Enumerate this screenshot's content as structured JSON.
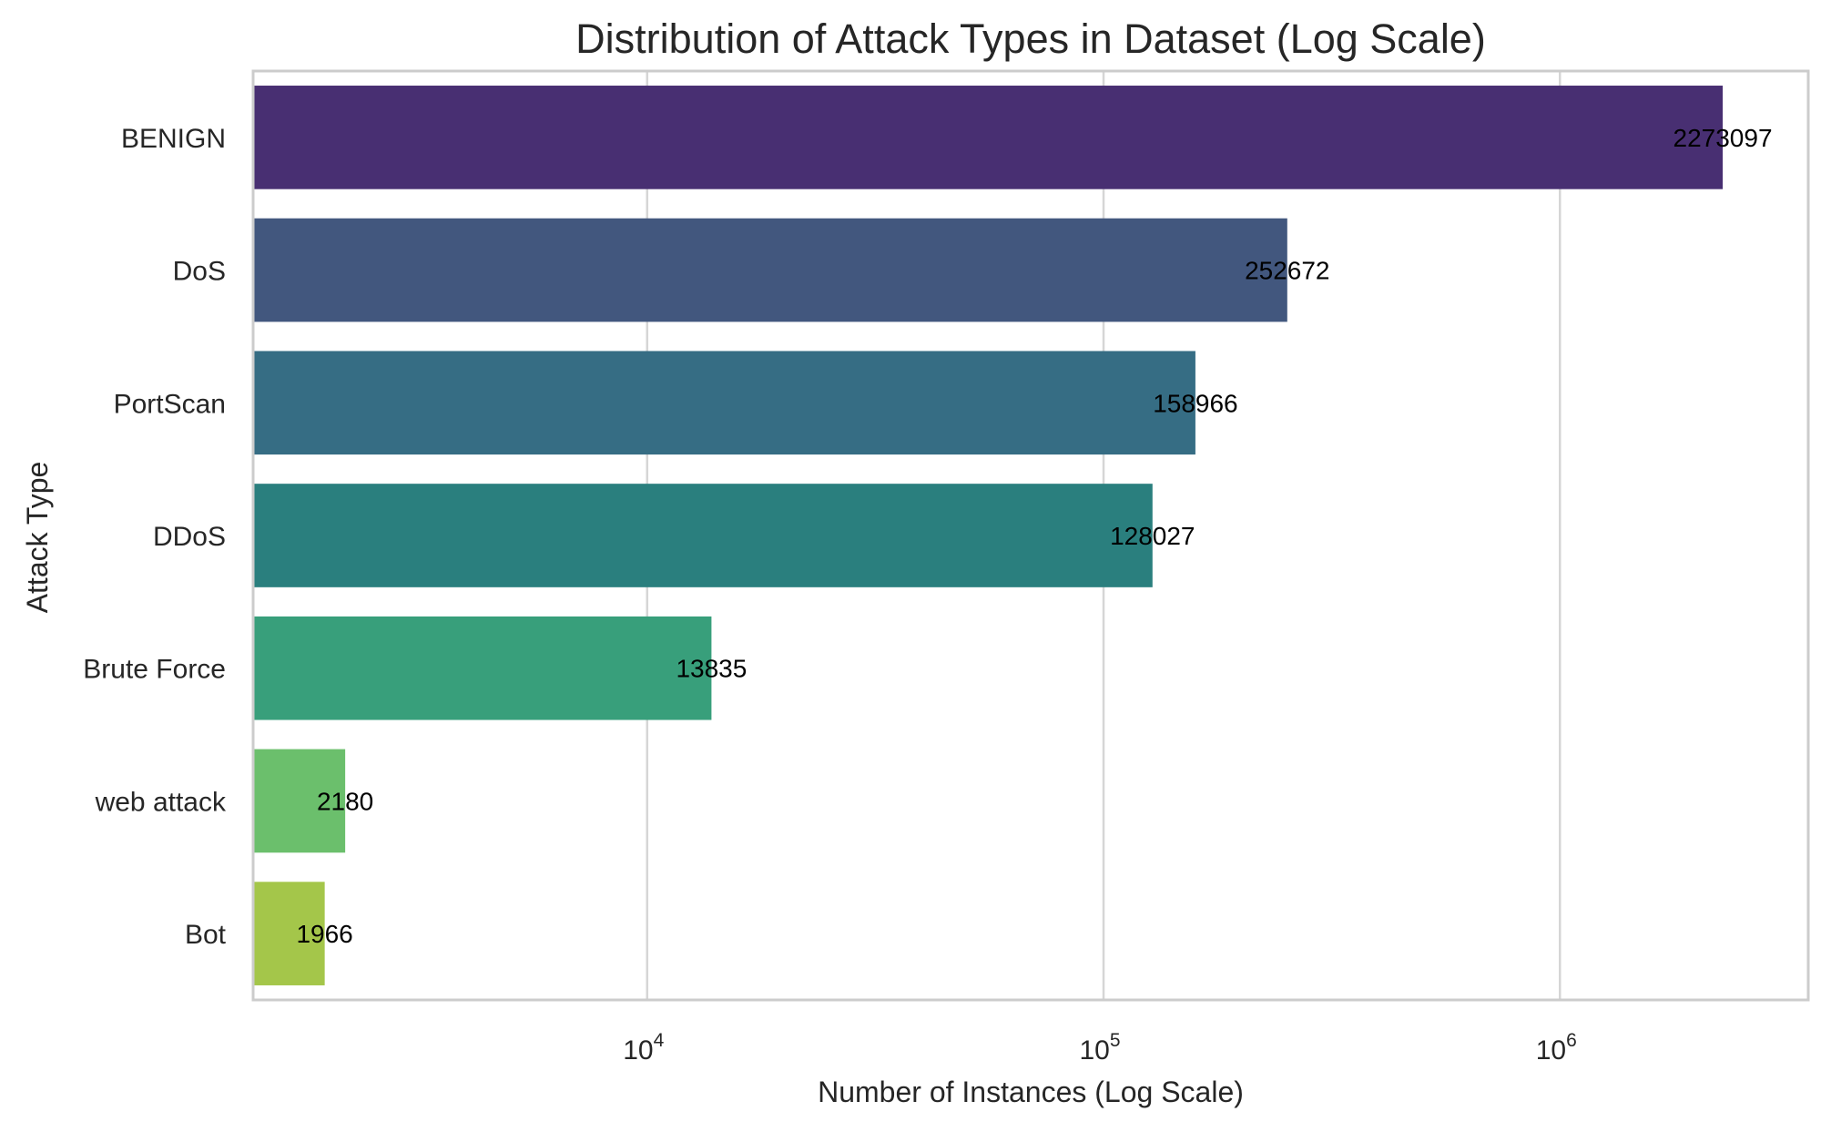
{
  "chart_data": {
    "type": "bar",
    "orientation": "horizontal",
    "title": "Distribution of Attack Types in Dataset (Log Scale)",
    "xlabel": "Number of Instances (Log Scale)",
    "ylabel": "Attack Type",
    "x_scale": "log",
    "xlim": [
      1370,
      3500000
    ],
    "x_ticks": [
      {
        "value": 10000,
        "base": "10",
        "exp": "4"
      },
      {
        "value": 100000,
        "base": "10",
        "exp": "5"
      },
      {
        "value": 1000000,
        "base": "10",
        "exp": "6"
      }
    ],
    "grid": true,
    "categories": [
      "BENIGN",
      "DoS",
      "PortScan",
      "DDoS",
      "Brute Force",
      "web attack",
      "Bot"
    ],
    "values": [
      2273097,
      252672,
      158966,
      128027,
      13835,
      2180,
      1966
    ],
    "value_labels": [
      "2273097",
      "252672",
      "158966",
      "128027",
      "13835",
      "2180",
      "1966"
    ],
    "colors": [
      "#482f72",
      "#42577e",
      "#366d84",
      "#2a7f7e",
      "#389f7b",
      "#6bbf6c",
      "#a4c64a"
    ]
  }
}
